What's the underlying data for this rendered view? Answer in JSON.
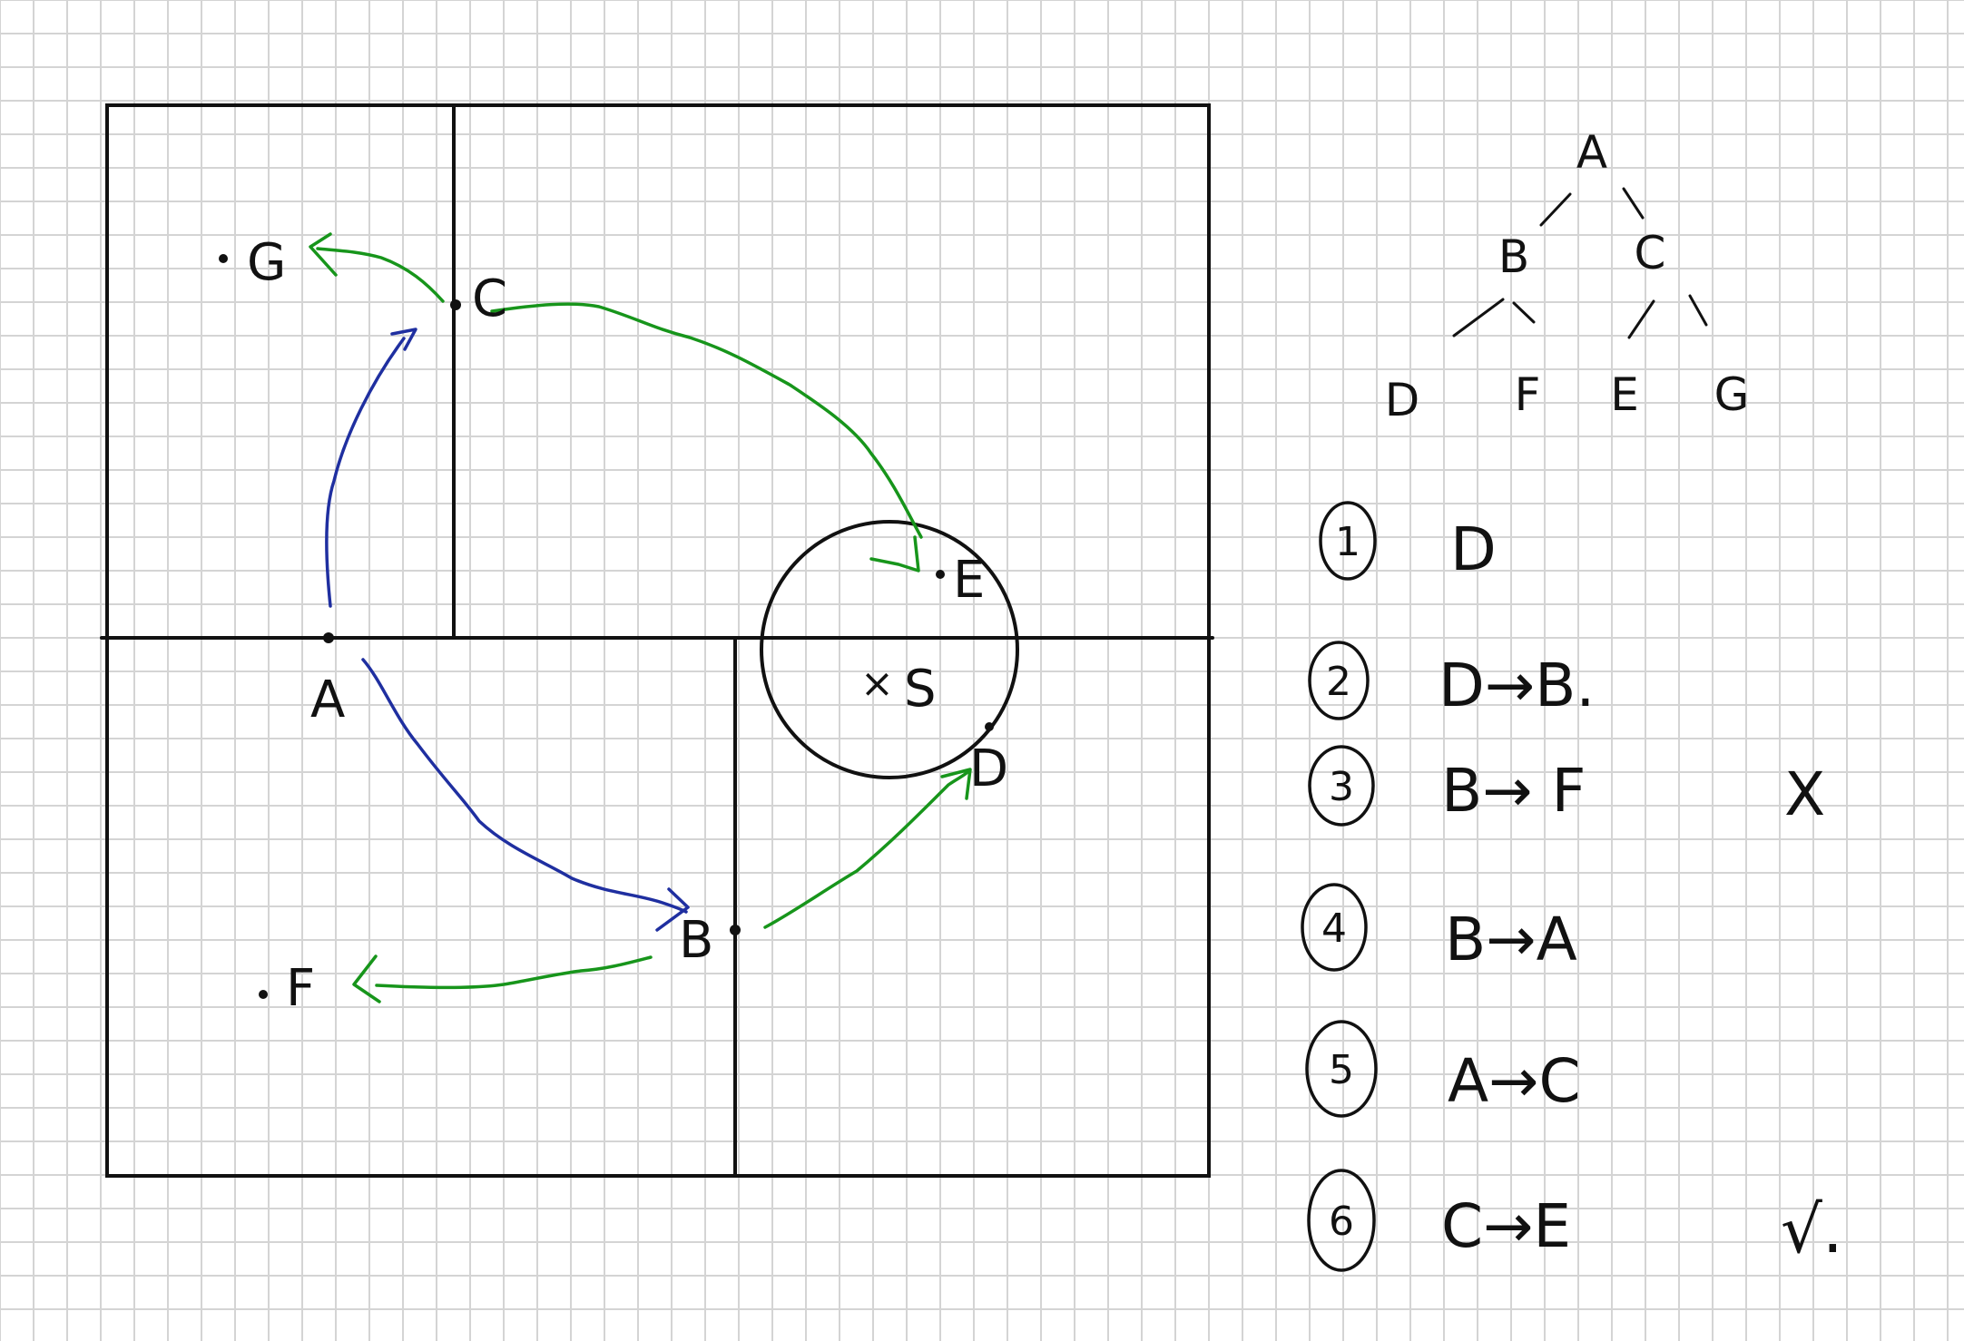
{
  "colors": {
    "background": "#ffffff",
    "grid": "#d4d4d4",
    "ink": "#111111",
    "query_path": "#1f2fa0",
    "backtrack_path": "#17951b"
  },
  "points": {
    "A": "A",
    "B": "B",
    "C": "C",
    "D": "D",
    "E": "E",
    "F": "F",
    "G": "G",
    "S": "S",
    "query_mark": "×"
  },
  "tree": {
    "root": "A",
    "level1": [
      "B",
      "C"
    ],
    "level2": [
      "D",
      "F",
      "E",
      "G"
    ]
  },
  "steps": [
    {
      "number": "1",
      "text": "D",
      "mark": ""
    },
    {
      "number": "2",
      "text": "D→B.",
      "mark": ""
    },
    {
      "number": "3",
      "text": "B→ F",
      "mark": "X"
    },
    {
      "number": "4",
      "text": "B→A",
      "mark": ""
    },
    {
      "number": "5",
      "text": "A→C",
      "mark": ""
    },
    {
      "number": "6",
      "text": "C→E",
      "mark": "√."
    }
  ]
}
